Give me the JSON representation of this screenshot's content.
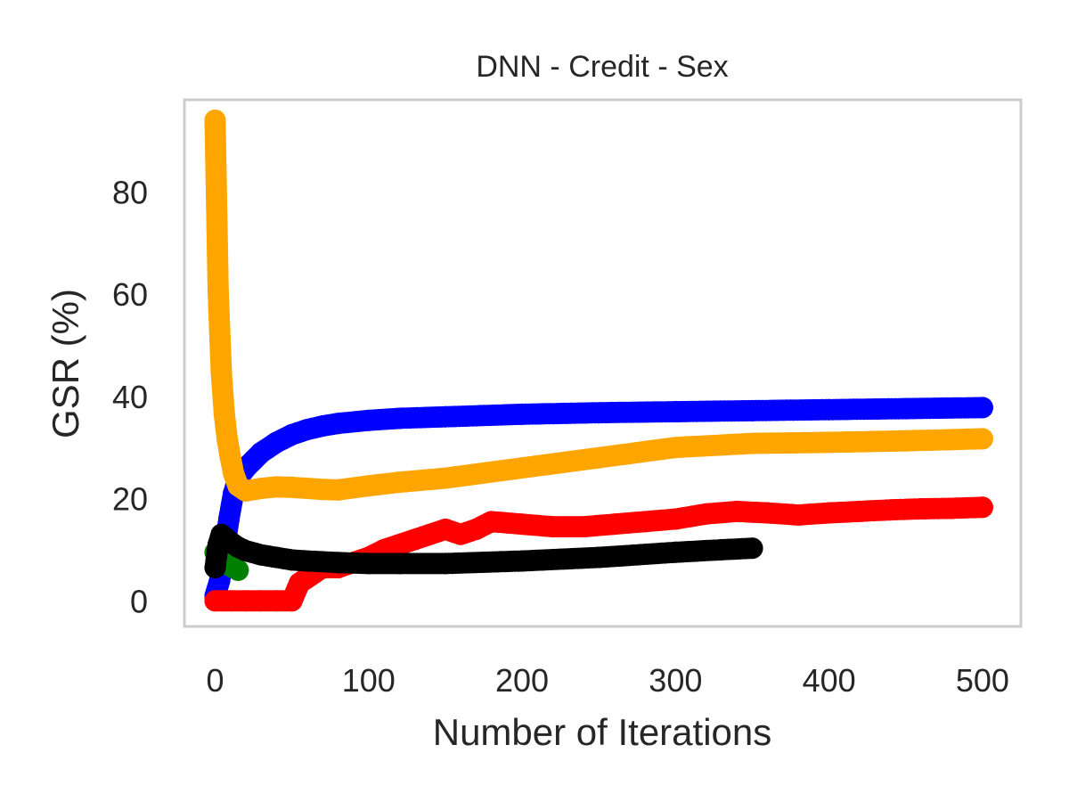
{
  "chart_data": {
    "type": "line",
    "title": "DNN - Credit - Sex",
    "xlabel": "Number of Iterations",
    "ylabel": "GSR (%)",
    "xlim": [
      -20,
      525
    ],
    "ylim": [
      -5,
      98
    ],
    "xticks": [
      0,
      100,
      200,
      300,
      400,
      500
    ],
    "yticks": [
      0,
      20,
      40,
      60,
      80
    ],
    "grid": false,
    "frame_color": "#cccccc",
    "series": [
      {
        "color": "#0000ff",
        "marker_size": "large",
        "x": [
          0,
          3,
          6,
          9,
          12,
          15,
          20,
          25,
          30,
          40,
          50,
          60,
          70,
          80,
          100,
          120,
          150,
          200,
          250,
          300,
          350,
          400,
          450,
          500
        ],
        "y": [
          1,
          4,
          10,
          16,
          21,
          24,
          26,
          27.5,
          29,
          31,
          32.5,
          33.5,
          34.2,
          34.7,
          35.3,
          35.7,
          36,
          36.5,
          36.8,
          37,
          37.2,
          37.4,
          37.6,
          37.8
        ]
      },
      {
        "color": "#ff0000",
        "marker_size": "large",
        "x": [
          0,
          10,
          20,
          30,
          40,
          50,
          55,
          60,
          70,
          80,
          90,
          100,
          110,
          120,
          130,
          140,
          150,
          160,
          170,
          180,
          200,
          220,
          240,
          260,
          280,
          300,
          320,
          340,
          360,
          380,
          400,
          420,
          440,
          460,
          480,
          500
        ],
        "y": [
          0,
          0,
          0,
          0,
          0,
          0,
          3.5,
          4.5,
          6.5,
          6.5,
          7.5,
          8.5,
          10,
          11,
          12,
          13,
          14,
          13,
          14,
          15.5,
          15,
          14.5,
          14.5,
          15,
          15.5,
          16,
          17,
          17.5,
          17.2,
          16.8,
          17.2,
          17.5,
          17.8,
          18,
          18.1,
          18.3
        ]
      },
      {
        "color": "#ffa500",
        "marker_size": "large",
        "x": [
          0,
          2,
          4,
          6,
          8,
          10,
          12,
          15,
          20,
          30,
          40,
          50,
          60,
          70,
          80,
          100,
          120,
          150,
          200,
          250,
          300,
          350,
          400,
          450,
          500
        ],
        "y": [
          94,
          60.5,
          45,
          36.5,
          31.5,
          28,
          25,
          22.5,
          21.5,
          22,
          22.3,
          22.2,
          22,
          21.8,
          21.7,
          22.5,
          23.2,
          24,
          26,
          28,
          30,
          30.8,
          31,
          31.3,
          31.7
        ]
      },
      {
        "color": "#008000",
        "marker_size": "large",
        "x": [
          0,
          3,
          6,
          9,
          12,
          15
        ],
        "y": [
          9.5,
          9,
          8,
          7,
          6.5,
          6
        ]
      },
      {
        "color": "#000000",
        "marker_size": "large",
        "x": [
          0,
          2,
          4,
          6,
          10,
          15,
          20,
          30,
          40,
          50,
          60,
          80,
          100,
          120,
          150,
          200,
          250,
          300,
          330,
          350
        ],
        "y": [
          6.5,
          11,
          13,
          12.5,
          11.5,
          10.5,
          9.8,
          9,
          8.5,
          8,
          7.8,
          7.5,
          7.3,
          7.3,
          7.3,
          7.8,
          8.5,
          9.5,
          10,
          10.3
        ]
      }
    ]
  }
}
